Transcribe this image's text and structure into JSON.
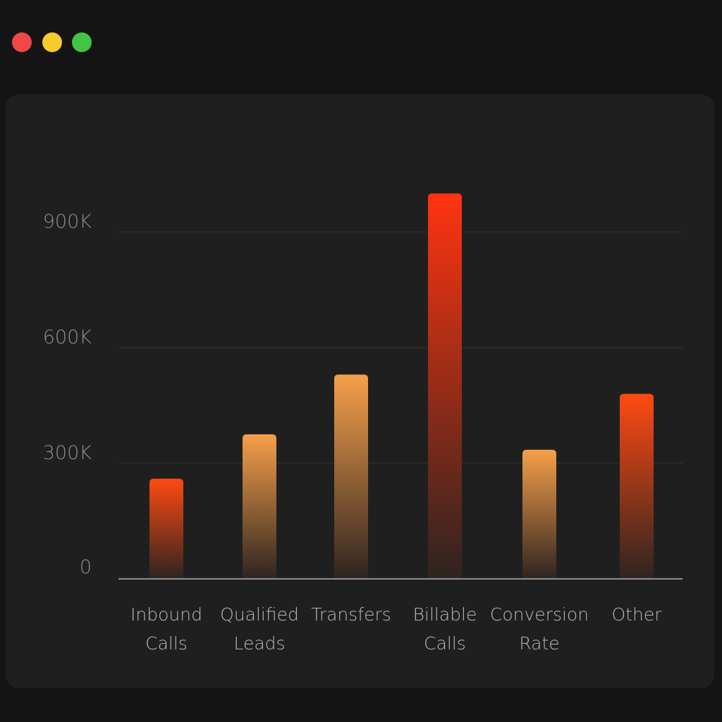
{
  "window": {
    "controls": [
      {
        "name": "close",
        "color": "#f04848"
      },
      {
        "name": "minimize",
        "color": "#f6cb2c"
      },
      {
        "name": "zoom",
        "color": "#44c445"
      }
    ]
  },
  "chart_data": {
    "type": "bar",
    "categories": [
      [
        "Inbound",
        "Calls"
      ],
      [
        "Qualified",
        "Leads"
      ],
      [
        "Transfers"
      ],
      [
        "Billable",
        "Calls"
      ],
      [
        "Conversion",
        "Rate"
      ],
      [
        "Other"
      ]
    ],
    "values": [
      260000,
      375000,
      530000,
      1000000,
      335000,
      480000
    ],
    "bar_colors": [
      {
        "top": "#ff4a12",
        "bottom": "#2e2420"
      },
      {
        "top": "#f6a04a",
        "bottom": "#2e2420"
      },
      {
        "top": "#f6a04a",
        "bottom": "#2e2420"
      },
      {
        "top": "#ff3410",
        "bottom": "#2e2420"
      },
      {
        "top": "#f6a04a",
        "bottom": "#2e2420"
      },
      {
        "top": "#ff4a12",
        "bottom": "#2e2420"
      }
    ],
    "yticks": [
      0,
      300000,
      600000,
      900000
    ],
    "ytick_labels": [
      "0",
      "300K",
      "600K",
      "900K"
    ],
    "ylim": [
      0,
      1000000
    ],
    "grid": true,
    "legend": "none",
    "title": "",
    "xlabel": "",
    "ylabel": ""
  }
}
